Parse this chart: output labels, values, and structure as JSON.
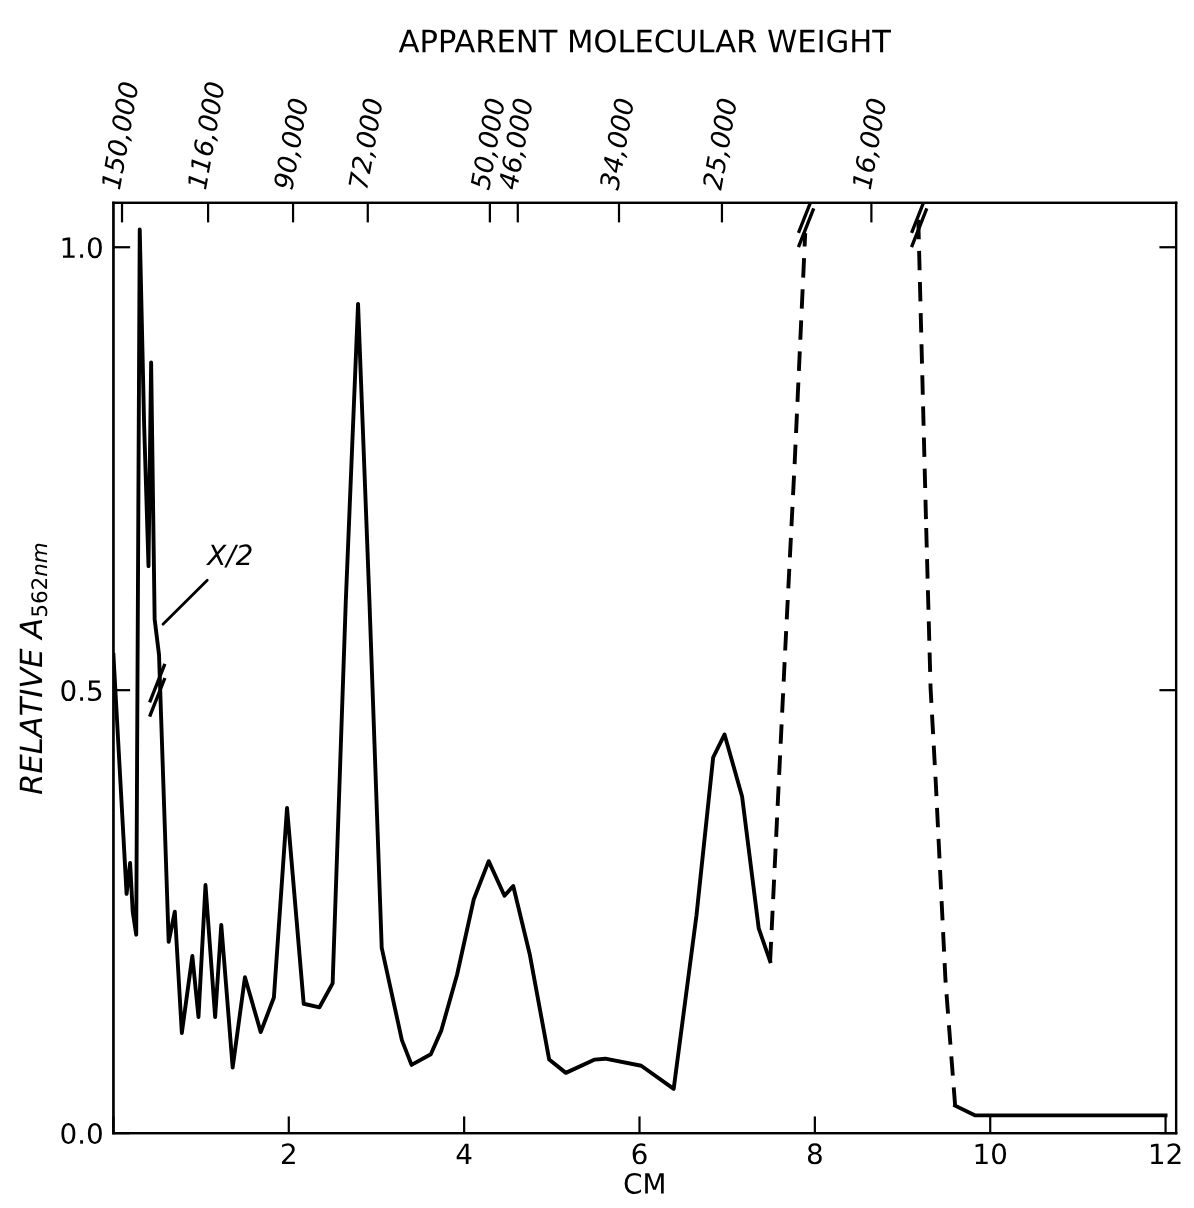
{
  "chart_data": {
    "type": "line",
    "x2label": "APPARENT MOLECULAR WEIGHT",
    "xlabel": "CM",
    "ylabel": "RELATIVE A$_{562nm}$",
    "log": "x2",
    "annotations": [
      {
        "text": "X/2",
        "x": 0.52,
        "y": 0.57
      }
    ],
    "series": [
      {
        "color": "#000000",
        "line_style": "solid",
        "x": [
          0.0,
          0.15,
          0.19,
          0.22,
          0.26,
          0.3,
          0.35,
          0.4,
          0.43,
          0.47,
          0.52,
          0.63,
          0.7,
          0.78,
          0.9,
          0.97,
          1.05,
          1.16,
          1.23,
          1.36,
          1.5,
          1.68,
          1.83,
          1.98,
          2.17,
          2.35,
          2.5,
          2.65,
          2.79,
          2.92,
          3.06,
          3.29,
          3.4,
          3.62,
          3.74,
          3.92,
          4.11,
          4.28,
          4.46,
          4.56,
          4.75,
          4.97,
          5.16,
          5.49,
          5.61,
          6.02,
          6.39,
          6.65,
          6.84,
          6.97,
          7.17,
          7.36,
          7.49
        ],
        "values": [
          0.54,
          0.27,
          0.305,
          0.25,
          0.224,
          1.02,
          0.8,
          0.64,
          0.87,
          0.58,
          0.54,
          0.216,
          0.25,
          0.113,
          0.2,
          0.131,
          0.28,
          0.131,
          0.235,
          0.074,
          0.176,
          0.114,
          0.153,
          0.367,
          0.146,
          0.142,
          0.169,
          0.6,
          0.936,
          0.6,
          0.209,
          0.105,
          0.077,
          0.089,
          0.116,
          0.179,
          0.264,
          0.307,
          0.268,
          0.279,
          0.201,
          0.083,
          0.068,
          0.083,
          0.084,
          0.076,
          0.05,
          0.246,
          0.424,
          0.45,
          0.38,
          0.231,
          0.194
        ]
      },
      {
        "color": "#000000",
        "line_style": "dashed",
        "x": [
          7.49,
          7.66,
          7.77,
          7.89,
          9.18,
          9.27,
          9.32,
          9.38,
          9.49,
          9.6
        ],
        "values": [
          0.194,
          0.542,
          0.757,
          1.016,
          null,
          0.683,
          0.502,
          0.394,
          0.172,
          0.031
        ]
      },
      {
        "color": "#000000",
        "line_style": "dashed",
        "x": [
          9.18,
          9.27
        ],
        "values": [
          1.031,
          0.683
        ]
      },
      {
        "color": "#000000",
        "line_style": "solid",
        "x": [
          9.6,
          9.83,
          12.0
        ],
        "values": [
          0.031,
          0.02,
          0.02
        ]
      }
    ],
    "xlim": [
      0,
      12.12
    ],
    "ylim": [
      0,
      1.05
    ],
    "xticks": [
      {
        "value": 0,
        "label": null
      },
      2,
      4,
      6,
      8,
      10,
      12
    ],
    "yticks": [
      {
        "value": 0,
        "label": "0.0"
      },
      0.5,
      {
        "value": 1,
        "label": "1.0"
      }
    ],
    "x2lim": [
      153900,
      6440
    ],
    "x2ticks": [
      {
        "value": 150000,
        "label": "150,000"
      },
      {
        "value": 116000,
        "label": "116,000"
      },
      {
        "value": 90000,
        "label": "90,000"
      },
      {
        "value": 72000,
        "label": "72,000"
      },
      {
        "value": 50000,
        "label": "50,000"
      },
      {
        "value": 46000,
        "label": "46,000"
      },
      {
        "value": 34000,
        "label": "34,000"
      },
      {
        "value": 25000,
        "label": "25,000"
      },
      {
        "value": 16000,
        "label": "16,000"
      }
    ],
    "grid": false,
    "legend": false,
    "marker": "none"
  }
}
